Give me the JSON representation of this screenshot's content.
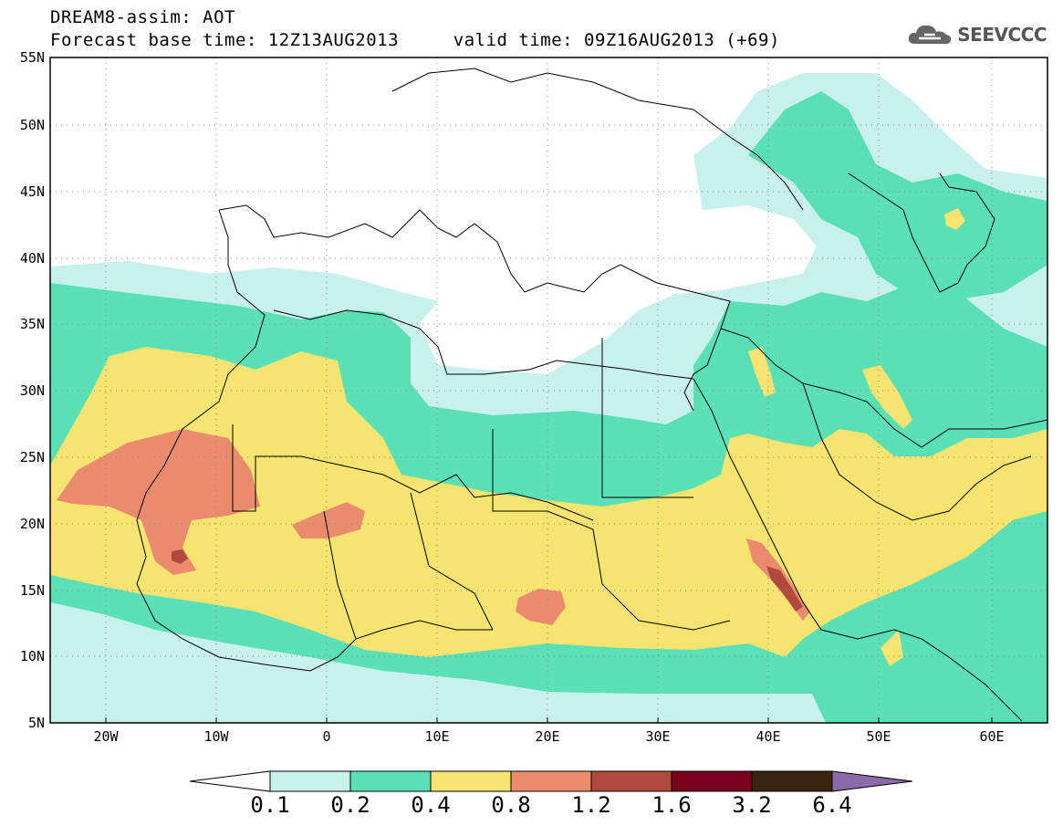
{
  "header": {
    "model_line": "DREAM8-assim: AOT",
    "forecast_label": "Forecast base time: 12Z13AUG2013",
    "valid_label": "valid time: 09Z16AUG2013 (+69)"
  },
  "logo": {
    "text": "SEEVCCC",
    "icon": "cloud-icon"
  },
  "map": {
    "lon_labels": [
      "20W",
      "10W",
      "0",
      "10E",
      "20E",
      "30E",
      "40E",
      "50E",
      "60E"
    ],
    "lat_labels": [
      "55N",
      "50N",
      "45N",
      "40N",
      "35N",
      "30N",
      "25N",
      "20N",
      "15N",
      "10N",
      "5N"
    ]
  },
  "colorbar": {
    "labels": [
      "0.1",
      "0.2",
      "0.4",
      "0.8",
      "1.2",
      "1.6",
      "3.2",
      "6.4"
    ],
    "colors": [
      "#ffffff",
      "#c8f1ec",
      "#5ae0b4",
      "#f6e370",
      "#ea8b6e",
      "#b04a3c",
      "#7a0020",
      "#3a2410",
      "#8a6aa8"
    ]
  },
  "chart_data": {
    "type": "heatmap",
    "variable": "AOT",
    "x_range": [
      -25,
      65
    ],
    "y_range": [
      5,
      55
    ],
    "levels": [
      0.1,
      0.2,
      0.4,
      0.8,
      1.2,
      1.6,
      3.2,
      6.4
    ]
  }
}
